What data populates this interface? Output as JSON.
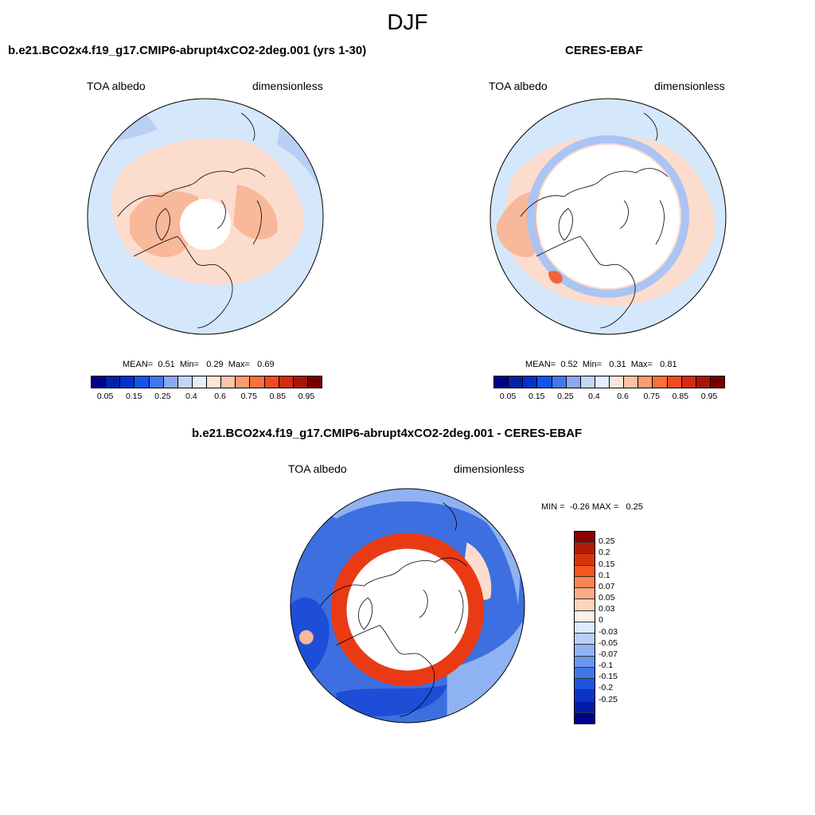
{
  "main_title": "DJF",
  "panels": [
    {
      "title": "b.e21.BCO2x4.f19_g17.CMIP6-abrupt4xCO2-2deg.001 (yrs 1-30)",
      "left_label": "TOA albedo",
      "right_label": "dimensionless",
      "mean_label": "MEAN=",
      "mean": "0.51",
      "min_label": "Min=",
      "min": "0.29",
      "max_label": "Max=",
      "max": "0.69"
    },
    {
      "title": "CERES-EBAF",
      "left_label": "TOA albedo",
      "right_label": "dimensionless",
      "mean_label": "MEAN=",
      "mean": "0.52",
      "min_label": "Min=",
      "min": "0.31",
      "max_label": "Max=",
      "max": "0.81"
    }
  ],
  "diff_panel": {
    "title": "b.e21.BCO2x4.f19_g17.CMIP6-abrupt4xCO2-2deg.001 - CERES-EBAF",
    "left_label": "TOA albedo",
    "right_label": "dimensionless",
    "min_label": "MIN =",
    "min": "-0.26",
    "max_label": "MAX =",
    "max": "0.25"
  },
  "colorbar_abs": {
    "colors": [
      "#000088",
      "#0022aa",
      "#0033cc",
      "#1155ee",
      "#4477ee",
      "#88aaf2",
      "#c2d6f8",
      "#e4eefd",
      "#fde6d8",
      "#fcc4a8",
      "#fc9a72",
      "#f9703d",
      "#ee4b20",
      "#d42a10",
      "#a81608",
      "#7a0000"
    ],
    "tick_labels": [
      "0.05",
      "0.15",
      "0.25",
      "0.4",
      "0.6",
      "0.75",
      "0.85",
      "0.95"
    ]
  },
  "colorbar_diff": {
    "colors": [
      "#8b0000",
      "#b01c06",
      "#d4350e",
      "#f4561c",
      "#f88456",
      "#fcac86",
      "#fdd4bc",
      "#fdf0e6",
      "#dfeafc",
      "#b8cff8",
      "#90b4f4",
      "#6a96ef",
      "#4276e8",
      "#1e55e0",
      "#0a34c8",
      "#001aaa",
      "#00008b"
    ],
    "tick_labels": [
      "0.25",
      "0.2",
      "0.15",
      "0.1",
      "0.07",
      "0.05",
      "0.03",
      "0",
      "-0.03",
      "-0.05",
      "-0.07",
      "-0.1",
      "-0.15",
      "-0.2",
      "-0.25"
    ]
  },
  "map_palette": {
    "background_blue": "#d5e7fb",
    "light_blue": "#b9d0f4",
    "light_orange": "#fcdccc",
    "orange": "#f8b89a",
    "strong_orange": "#f0643a",
    "ring_red": "#ea3a14",
    "diff_blue": "#3d6fe0",
    "diff_deep_blue": "#1e4ed8",
    "diff_light_blue": "#8fb2f2",
    "white": "#ffffff"
  }
}
